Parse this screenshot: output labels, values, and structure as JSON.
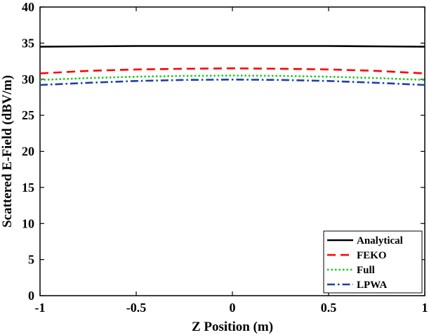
{
  "chart_data": {
    "type": "line",
    "title": "",
    "xlabel": "Z Position (m)",
    "ylabel": "Scattered E-Field (dBV/m)",
    "xlim": [
      -1,
      1
    ],
    "ylim": [
      0,
      40
    ],
    "xticks": [
      -1,
      -0.5,
      0,
      0.5,
      1
    ],
    "xtick_labels": [
      "-1",
      "-0.5",
      "0",
      "0.5",
      "1"
    ],
    "yticks": [
      0,
      5,
      10,
      15,
      20,
      25,
      30,
      35,
      40
    ],
    "ytick_labels": [
      "0",
      "5",
      "10",
      "15",
      "20",
      "25",
      "30",
      "35",
      "40"
    ],
    "grid": false,
    "legend_position": "bottom-right",
    "series": [
      {
        "name": "Analytical",
        "color": "#000000",
        "dash": "solid",
        "x": [
          -1,
          -0.75,
          -0.5,
          -0.25,
          0,
          0.25,
          0.5,
          0.75,
          1
        ],
        "y": [
          34.5,
          34.55,
          34.6,
          34.6,
          34.6,
          34.6,
          34.6,
          34.55,
          34.5
        ]
      },
      {
        "name": "FEKO",
        "color": "#ff0000",
        "dash": "dashed",
        "x": [
          -1,
          -0.75,
          -0.5,
          -0.25,
          0,
          0.25,
          0.5,
          0.75,
          1
        ],
        "y": [
          30.8,
          31.15,
          31.35,
          31.45,
          31.5,
          31.45,
          31.35,
          31.15,
          30.8
        ]
      },
      {
        "name": "Full",
        "color": "#22c522",
        "dash": "dotted",
        "x": [
          -1,
          -0.75,
          -0.5,
          -0.25,
          0,
          0.25,
          0.5,
          0.75,
          1
        ],
        "y": [
          29.9,
          30.15,
          30.35,
          30.45,
          30.5,
          30.45,
          30.35,
          30.15,
          29.9
        ]
      },
      {
        "name": "LPWA",
        "color": "#1f3fa8",
        "dash": "dashdot",
        "x": [
          -1,
          -0.75,
          -0.5,
          -0.25,
          0,
          0.25,
          0.5,
          0.75,
          1
        ],
        "y": [
          29.2,
          29.5,
          29.75,
          29.9,
          29.95,
          29.9,
          29.75,
          29.5,
          29.2
        ]
      }
    ]
  }
}
